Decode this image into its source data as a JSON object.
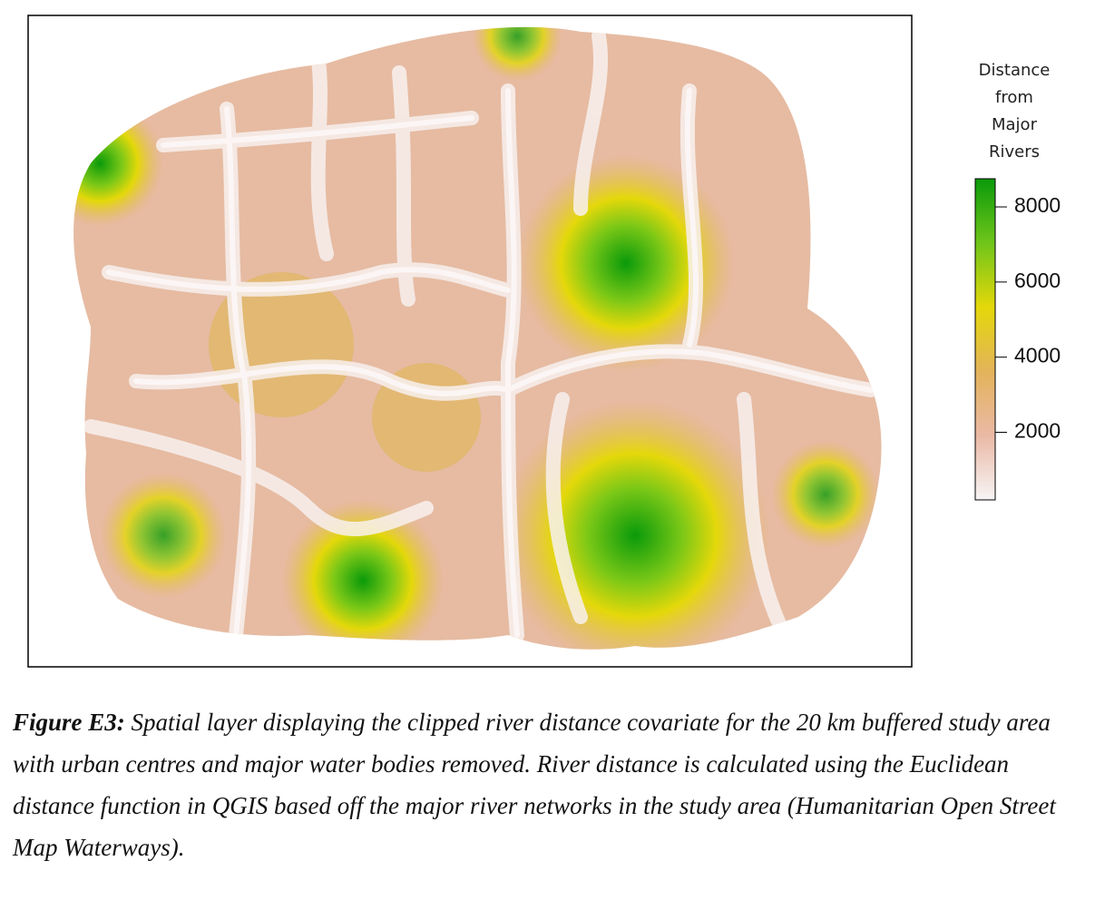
{
  "legend": {
    "title_lines": [
      "Distance",
      "from",
      "Major",
      "Rivers"
    ],
    "range": [
      200,
      8750
    ],
    "ticks": [
      2000,
      4000,
      6000,
      8000
    ],
    "colors": [
      "#f7f4f4",
      "#eab9a6",
      "#e3b35a",
      "#e4d80a",
      "#6fc51a",
      "#0a9a0a"
    ]
  },
  "caption": {
    "label": "Figure E3:",
    "text": "Spatial layer displaying the clipped river distance covariate for the 20 km buffered study area with urban centres and major water bodies removed. River distance is calculated using the Euclidean distance function in QGIS based off the major river networks in the study area (Humanitarian Open Street Map Waterways)."
  }
}
